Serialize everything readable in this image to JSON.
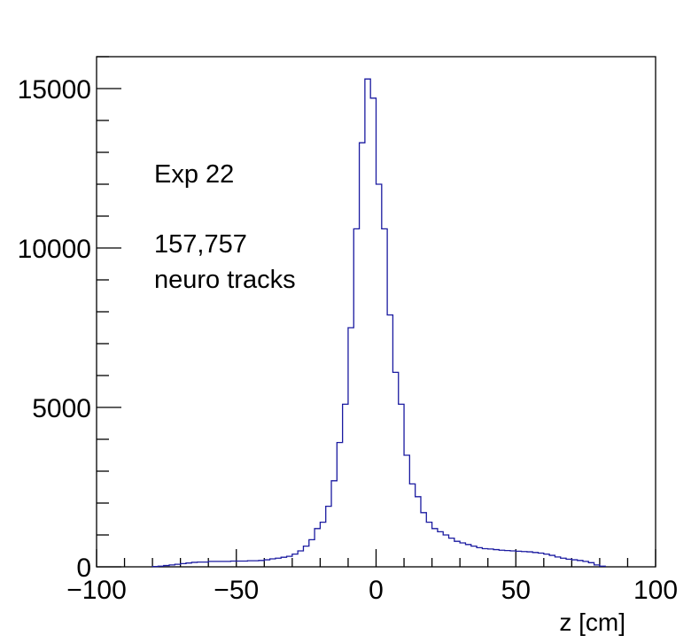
{
  "chart_data": {
    "type": "histogram",
    "xlabel": "z [cm]",
    "ylabel": "",
    "xlim": [
      -100,
      100
    ],
    "ylim": [
      0,
      16000
    ],
    "x_ticks": [
      -100,
      -50,
      0,
      50,
      100
    ],
    "y_ticks": [
      0,
      5000,
      10000,
      15000
    ],
    "x_tick_labels": [
      "−100",
      "−50",
      "0",
      "50",
      "100"
    ],
    "y_tick_labels": [
      "0",
      "5000",
      "10000",
      "15000"
    ],
    "annotations": [
      "Exp 22",
      "157,757",
      "neuro tracks"
    ],
    "line_color": "#1a1aa0",
    "grid": false,
    "bin_width": 2,
    "bin_edges_start": -80,
    "counts": [
      10,
      20,
      40,
      60,
      80,
      100,
      120,
      140,
      150,
      150,
      170,
      170,
      170,
      170,
      180,
      180,
      180,
      190,
      190,
      200,
      220,
      250,
      270,
      300,
      330,
      400,
      500,
      650,
      850,
      1200,
      1400,
      1900,
      2700,
      3900,
      5100,
      7500,
      10600,
      13300,
      15300,
      14700,
      12000,
      10600,
      7900,
      6100,
      5100,
      3500,
      2600,
      2200,
      1700,
      1400,
      1200,
      1100,
      1000,
      900,
      800,
      750,
      700,
      650,
      600,
      570,
      560,
      540,
      520,
      510,
      500,
      490,
      480,
      470,
      450,
      430,
      400,
      360,
      310,
      270,
      240,
      220,
      200,
      170,
      130,
      60,
      20
    ]
  }
}
